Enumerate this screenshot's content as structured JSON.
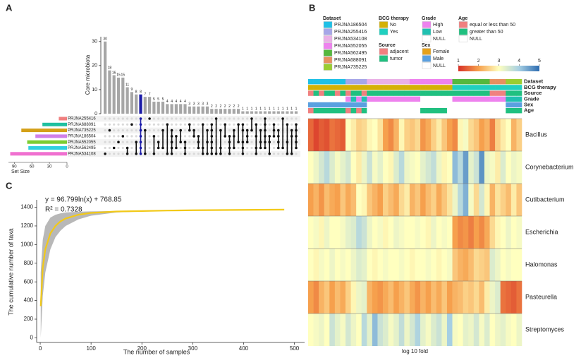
{
  "chart_data": [
    {
      "type": "upset",
      "label": "A",
      "ylabel": "Core microbiota",
      "ylim": [
        0,
        32
      ],
      "yticks": [
        0,
        10,
        20,
        30
      ],
      "color": "#a6a6a6",
      "xlabel": "Set Size",
      "xlim": [
        0,
        100
      ],
      "xticks": [
        0,
        30,
        60,
        90
      ],
      "sets": [
        {
          "name": "PRJNA255416",
          "size": 14,
          "color": "#f08080"
        },
        {
          "name": "PRJNA688091",
          "size": 42,
          "color": "#20c0a0"
        },
        {
          "name": "PRJNA735225",
          "size": 78,
          "color": "#d4a017"
        },
        {
          "name": "PRJNA186504",
          "size": 54,
          "color": "#d080e8"
        },
        {
          "name": "PRJNA552055",
          "size": 68,
          "color": "#7ccd32"
        },
        {
          "name": "PRJNA562495",
          "size": 66,
          "color": "#30d0e0"
        },
        {
          "name": "PRJNA534108",
          "size": 97,
          "color": "#f070d0"
        }
      ],
      "intersections": [
        {
          "size": 30,
          "sets": [
            6
          ]
        },
        {
          "size": 18,
          "sets": [
            2
          ]
        },
        {
          "size": 16,
          "sets": [
            5
          ]
        },
        {
          "size": 15,
          "sets": [
            4
          ]
        },
        {
          "size": 15,
          "sets": [
            3
          ]
        },
        {
          "size": 11,
          "sets": [
            5,
            6
          ]
        },
        {
          "size": 9,
          "sets": [
            1
          ]
        },
        {
          "size": 8,
          "sets": [
            4,
            6
          ]
        },
        {
          "size": 8,
          "sets": [
            0,
            1,
            2,
            3,
            4,
            5,
            6
          ],
          "color": "#1a1aa8"
        },
        {
          "size": 7,
          "sets": [
            2,
            6
          ]
        },
        {
          "size": 7,
          "sets": [
            0
          ]
        },
        {
          "size": 5,
          "sets": [
            3,
            6
          ]
        },
        {
          "size": 5,
          "sets": [
            4,
            5
          ]
        },
        {
          "size": 5,
          "sets": [
            2,
            5
          ]
        },
        {
          "size": 4,
          "sets": [
            1,
            6
          ]
        },
        {
          "size": 4,
          "sets": [
            2,
            3,
            4,
            5,
            6
          ]
        },
        {
          "size": 4,
          "sets": [
            3,
            5
          ]
        },
        {
          "size": 4,
          "sets": [
            2,
            4
          ]
        },
        {
          "size": 4,
          "sets": [
            4,
            5,
            6
          ]
        },
        {
          "size": 3,
          "sets": [
            1,
            2
          ]
        },
        {
          "size": 3,
          "sets": [
            2,
            3
          ]
        },
        {
          "size": 3,
          "sets": [
            3,
            4,
            5
          ]
        },
        {
          "size": 3,
          "sets": [
            1,
            5,
            6
          ]
        },
        {
          "size": 3,
          "sets": [
            2,
            4,
            6
          ]
        },
        {
          "size": 2,
          "sets": [
            1,
            2,
            3,
            4,
            5,
            6
          ]
        },
        {
          "size": 2,
          "sets": [
            0,
            6
          ]
        },
        {
          "size": 2,
          "sets": [
            2,
            5,
            6
          ]
        },
        {
          "size": 2,
          "sets": [
            1,
            3
          ]
        },
        {
          "size": 2,
          "sets": [
            3,
            4,
            5,
            6
          ]
        },
        {
          "size": 2,
          "sets": [
            2,
            3,
            5
          ]
        },
        {
          "size": 2,
          "sets": [
            1,
            4
          ]
        },
        {
          "size": 1,
          "sets": [
            1,
            2,
            4,
            5,
            6
          ]
        },
        {
          "size": 1,
          "sets": [
            2,
            3,
            4
          ]
        },
        {
          "size": 1,
          "sets": [
            0,
            2
          ]
        },
        {
          "size": 1,
          "sets": [
            1,
            3,
            5,
            6
          ]
        },
        {
          "size": 1,
          "sets": [
            2,
            4,
            5
          ]
        },
        {
          "size": 1,
          "sets": [
            0,
            1,
            2,
            3,
            4,
            5
          ]
        },
        {
          "size": 1,
          "sets": [
            3,
            4,
            6
          ]
        },
        {
          "size": 1,
          "sets": [
            1,
            2,
            3
          ]
        },
        {
          "size": 1,
          "sets": [
            2,
            3,
            4,
            5
          ]
        },
        {
          "size": 1,
          "sets": [
            0,
            5
          ]
        },
        {
          "size": 1,
          "sets": [
            1,
            4,
            6
          ]
        },
        {
          "size": 1,
          "sets": [
            2,
            3,
            6
          ]
        },
        {
          "size": 1,
          "sets": [
            1,
            2,
            3,
            4,
            5
          ]
        }
      ]
    },
    {
      "type": "heatmap",
      "label": "B",
      "xlabel": "log 10 fold",
      "clim": [
        1,
        5
      ],
      "colorbar_ticks": [
        1,
        2,
        3,
        4,
        5
      ],
      "colorbar_colors": [
        "#d73027",
        "#f6a04d",
        "#ffffbf",
        "#a6cfe3",
        "#2c6bb0"
      ],
      "tracks": [
        {
          "name": "Dataset",
          "levels": [
            {
              "name": "PRJNA186504",
              "color": "#1fc0e6"
            },
            {
              "name": "PRJNA255416",
              "color": "#a6a6e8"
            },
            {
              "name": "PRJNA534108",
              "color": "#eab0e6"
            },
            {
              "name": "PRJNA552055",
              "color": "#ee82ee"
            },
            {
              "name": "PRJNA562495",
              "color": "#55b83e"
            },
            {
              "name": "PRJNA688091",
              "color": "#e79060"
            },
            {
              "name": "PRJNA735225",
              "color": "#9acd32"
            }
          ],
          "values": [
            0,
            0,
            0,
            0,
            0,
            0,
            0,
            1,
            1,
            1,
            1,
            2,
            2,
            2,
            2,
            2,
            2,
            2,
            2,
            3,
            3,
            3,
            3,
            3,
            3,
            3,
            3,
            4,
            4,
            4,
            4,
            4,
            4,
            4,
            5,
            5,
            5,
            6,
            6,
            6
          ]
        },
        {
          "name": "BCG therapy",
          "levels": [
            {
              "name": "No",
              "color": "#d4b106"
            },
            {
              "name": "Yes",
              "color": "#20d0c0"
            }
          ],
          "values": [
            0,
            0,
            0,
            0,
            0,
            0,
            0,
            0,
            0,
            0,
            0,
            0,
            0,
            0,
            0,
            0,
            0,
            0,
            0,
            0,
            0,
            0,
            0,
            0,
            0,
            0,
            0,
            1,
            1,
            1,
            1,
            1,
            1,
            1,
            1,
            1,
            1,
            1,
            1,
            1
          ]
        },
        {
          "name": "Source",
          "levels": [
            {
              "name": "adjacent",
              "color": "#f08080"
            },
            {
              "name": "tumor",
              "color": "#20c080"
            }
          ],
          "values": [
            0,
            1,
            0,
            1,
            1,
            0,
            1,
            0,
            1,
            1,
            0,
            1,
            1,
            1,
            1,
            1,
            1,
            1,
            1,
            1,
            1,
            1,
            1,
            1,
            1,
            1,
            1,
            1,
            1,
            1,
            1,
            1,
            1,
            1,
            0,
            0,
            0,
            1,
            1,
            1
          ]
        },
        {
          "name": "Grade",
          "levels": [
            {
              "name": "High",
              "color": "#ee82ee"
            },
            {
              "name": "Low",
              "color": "#20c0b0"
            },
            {
              "name": "NULL",
              "color": "#ffffff"
            }
          ],
          "values": [
            2,
            2,
            2,
            2,
            2,
            2,
            2,
            0,
            1,
            0,
            1,
            0,
            0,
            0,
            0,
            0,
            0,
            0,
            0,
            0,
            0,
            2,
            2,
            2,
            2,
            2,
            2,
            0,
            0,
            0,
            0,
            0,
            0,
            0,
            0,
            0,
            0,
            1,
            1,
            1
          ]
        },
        {
          "name": "Sex",
          "levels": [
            {
              "name": "Female",
              "color": "#e6a11a"
            },
            {
              "name": "Male",
              "color": "#5aa0e0"
            },
            {
              "name": "NULL",
              "color": "#ffffff"
            }
          ],
          "values": [
            1,
            1,
            1,
            1,
            1,
            1,
            1,
            1,
            1,
            1,
            1,
            2,
            2,
            2,
            2,
            2,
            2,
            2,
            2,
            2,
            2,
            2,
            2,
            2,
            2,
            2,
            2,
            2,
            2,
            2,
            2,
            2,
            2,
            2,
            2,
            2,
            2,
            1,
            1,
            1
          ]
        },
        {
          "name": "Age",
          "levels": [
            {
              "name": "equal or less than 50",
              "color": "#f08080"
            },
            {
              "name": "greater than 50",
              "color": "#20c080"
            },
            {
              "name": "NULL",
              "color": "#ffffff"
            }
          ],
          "values": [
            0,
            1,
            1,
            1,
            1,
            1,
            1,
            0,
            1,
            0,
            1,
            2,
            2,
            2,
            2,
            2,
            2,
            2,
            2,
            2,
            2,
            1,
            1,
            1,
            1,
            1,
            2,
            2,
            2,
            2,
            2,
            2,
            2,
            2,
            2,
            2,
            2,
            1,
            1,
            1
          ]
        }
      ],
      "rows": [
        {
          "name": "Bacillus",
          "values": [
            1.5,
            1.2,
            1.4,
            1.3,
            1.6,
            1.5,
            1.4,
            3,
            2.8,
            2.5,
            2.6,
            2.9,
            3,
            2.7,
            2,
            1.8,
            2.2,
            2.9,
            2.5,
            2.4,
            2.6,
            1.9,
            2.1,
            2.5,
            2.8,
            2.4,
            2,
            1.8,
            2.9,
            3.1,
            2.6,
            2.4,
            2,
            2.2,
            1.7,
            2.5,
            2.8,
            3,
            2.2,
            2.5
          ]
        },
        {
          "name": "Corynebacterium",
          "values": [
            3,
            3.2,
            3.5,
            3.8,
            3.4,
            3.1,
            3.3,
            3.5,
            3,
            2.8,
            3.2,
            3.6,
            3.1,
            3.3,
            3,
            2.9,
            3.4,
            3.8,
            3.2,
            3.1,
            3,
            3.3,
            3.5,
            3.7,
            3.2,
            2.9,
            3,
            4.2,
            3.8,
            4.5,
            3.3,
            3.6,
            4.6,
            3.2,
            3.1,
            2.8,
            3.4,
            3,
            3.2,
            3.1
          ]
        },
        {
          "name": "Cutibacterium",
          "values": [
            2,
            2.2,
            1.9,
            2.3,
            2.1,
            2,
            2.4,
            2.1,
            2.3,
            3,
            2.9,
            2.4,
            2.2,
            2,
            2.5,
            2.3,
            2.1,
            2.6,
            2.8,
            2.2,
            2.4,
            2,
            2.3,
            2.5,
            2.1,
            2.4,
            2.7,
            3.2,
            3.8,
            4.3,
            3.1,
            2.6,
            3.5,
            2.9,
            2.2,
            2.7,
            2.5,
            2.3,
            2.8,
            2.4
          ]
        },
        {
          "name": "Escherichia",
          "values": [
            3,
            3.1,
            2.9,
            3.2,
            3,
            3,
            3.1,
            3.3,
            3.4,
            3.8,
            3.6,
            3.2,
            3,
            3.1,
            2.9,
            3,
            3.2,
            3.1,
            3,
            3,
            3.1,
            3,
            2.9,
            3.2,
            3,
            3.1,
            3,
            2,
            1.8,
            1.9,
            1.7,
            2,
            1.8,
            2.1,
            2.6,
            2.9,
            3,
            3.2,
            3,
            3.1
          ]
        },
        {
          "name": "Halomonas",
          "values": [
            3,
            2.9,
            3.1,
            3,
            3.2,
            3,
            3.1,
            3,
            3.2,
            3.4,
            3.3,
            3,
            2.9,
            3,
            3.1,
            3,
            3,
            3.1,
            3,
            2.9,
            3,
            3,
            3.1,
            3,
            2.9,
            3,
            3.1,
            2.4,
            2.2,
            2.1,
            2.3,
            2.6,
            2.5,
            2.4,
            3.4,
            3.2,
            3,
            3.1,
            3,
            3
          ]
        },
        {
          "name": "Pasteurella",
          "values": [
            2,
            1.8,
            2.2,
            2.4,
            2,
            2.3,
            2.1,
            2.5,
            2.9,
            3.2,
            3.3,
            2.2,
            2,
            1.9,
            2.1,
            2.3,
            2,
            2.2,
            2.4,
            2.1,
            1.9,
            2.2,
            2,
            2.3,
            2.1,
            2.4,
            2,
            2.2,
            2.3,
            2.5,
            2.4,
            2.6,
            2.3,
            2.8,
            3.2,
            3.4,
            1.6,
            1.5,
            1.4,
            1.6
          ]
        },
        {
          "name": "Streptomyces",
          "values": [
            3,
            3.1,
            3.2,
            3,
            3.6,
            3.3,
            3.1,
            3.5,
            3.2,
            3,
            3.8,
            3.3,
            4.2,
            3.6,
            3.4,
            3.1,
            3.3,
            3.7,
            3.2,
            3.5,
            3.9,
            3.3,
            3.1,
            3.4,
            3.6,
            3.2,
            4,
            3.1,
            3,
            3.3,
            3.2,
            3.5,
            3.1,
            3.4,
            3,
            3.2,
            3.3,
            3.1,
            3,
            3.2
          ]
        }
      ]
    },
    {
      "type": "line",
      "label": "C",
      "xlabel": "The number of samples",
      "ylabel": "The cumulative number of taxa",
      "annotations": [
        "y = 96.799ln(x) + 768.85",
        "R² = 0.7328"
      ],
      "xlim": [
        -7,
        520
      ],
      "xticks": [
        0,
        100,
        200,
        300,
        400,
        500
      ],
      "ylim": [
        -50,
        1480
      ],
      "yticks": [
        0,
        200,
        400,
        600,
        800,
        1000,
        1200,
        1400
      ],
      "x": [
        1,
        5,
        10,
        20,
        30,
        40,
        50,
        75,
        100,
        150,
        200,
        250,
        300,
        400,
        480
      ],
      "band_color": "#b8b8b8",
      "lower": [
        0,
        450,
        700,
        950,
        1080,
        1150,
        1200,
        1270,
        1310,
        1345,
        1355,
        1362,
        1366,
        1371,
        1375
      ],
      "upper": [
        700,
        1050,
        1200,
        1290,
        1320,
        1335,
        1345,
        1352,
        1356,
        1360,
        1363,
        1366,
        1369,
        1373,
        1375
      ],
      "series": [
        {
          "color": "#f2c918",
          "values": [
            340,
            750,
            950,
            1120,
            1200,
            1250,
            1280,
            1320,
            1340,
            1355,
            1360,
            1365,
            1368,
            1372,
            1375
          ]
        }
      ]
    }
  ]
}
